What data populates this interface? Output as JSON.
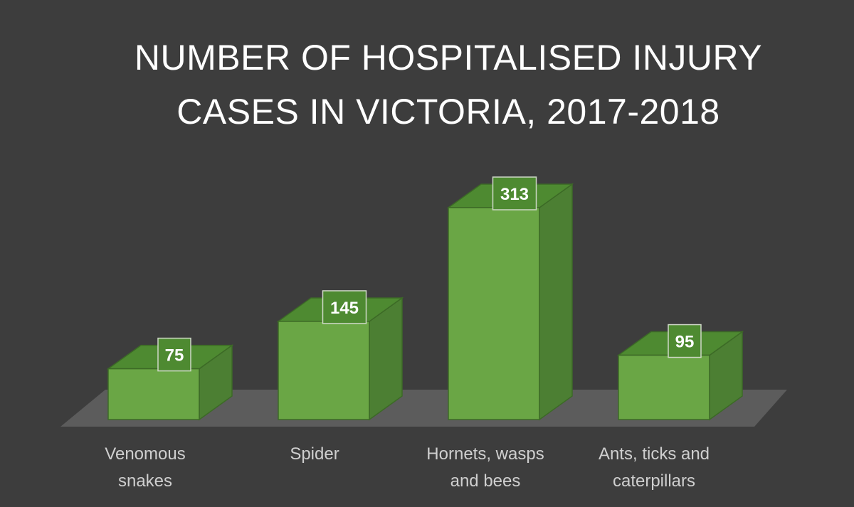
{
  "chart_data": {
    "type": "bar",
    "title_lines": [
      "NUMBER OF HOSPITALISED INJURY",
      "CASES IN VICTORIA, 2017-2018"
    ],
    "categories": [
      [
        "Venomous",
        "snakes"
      ],
      [
        "Spider"
      ],
      [
        "Hornets, wasps",
        "and bees"
      ],
      [
        "Ants, ticks and",
        "caterpillars"
      ]
    ],
    "values": [
      75,
      145,
      313,
      95
    ],
    "ylim": [
      0,
      313
    ],
    "grid": false,
    "legend": "none",
    "colors": {
      "background": "#3d3d3d",
      "bar_front": "#6aa645",
      "bar_top": "#4e8a31",
      "bar_side": "#4c7f33",
      "floor": "#5c5c5c",
      "bar_edge": "#3c6a26"
    }
  }
}
